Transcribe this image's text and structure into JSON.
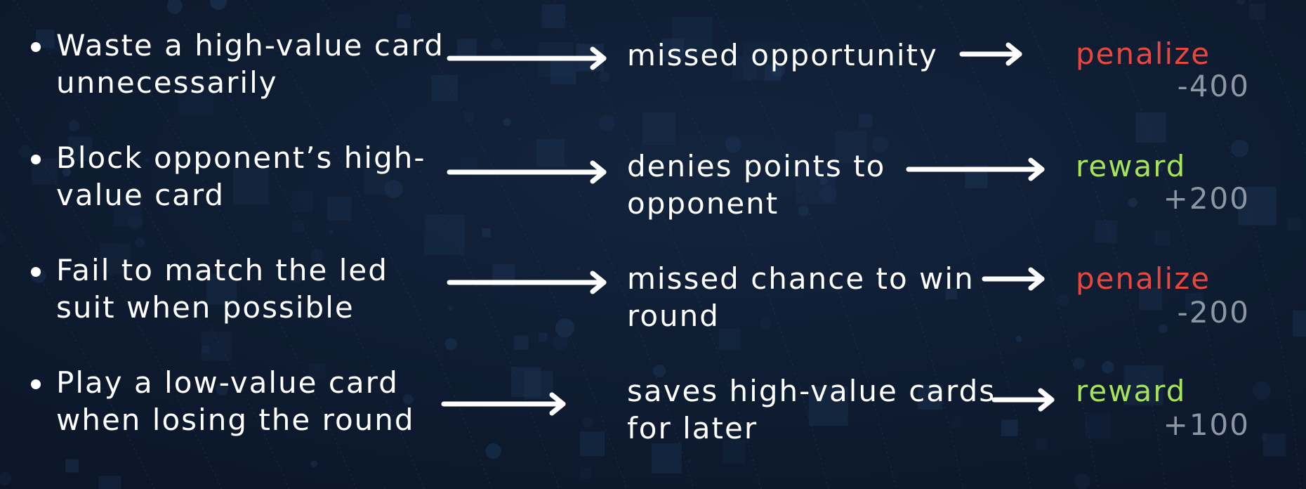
{
  "colors": {
    "background": "#0d1a2d",
    "text": "#ffffff",
    "penalize": "#e8473f",
    "reward": "#a6e35a",
    "score": "#8d97a3"
  },
  "rows": [
    {
      "action": "Waste a high-value card\nunnecessarily",
      "consequence": "missed opportunity",
      "verdict": "penalize",
      "score": "-400",
      "type": "penalize"
    },
    {
      "action": "Block opponent’s high-\nvalue card",
      "consequence": "denies points to\nopponent",
      "verdict": "reward",
      "score": "+200",
      "type": "reward"
    },
    {
      "action": "Fail to match the led\nsuit when possible",
      "consequence": "missed chance to win\nround",
      "verdict": "penalize",
      "score": "-200",
      "type": "penalize"
    },
    {
      "action": "Play a low-value card\nwhen losing the round",
      "consequence": "saves high-value cards\nfor later",
      "verdict": "reward",
      "score": "+100",
      "type": "reward"
    }
  ]
}
